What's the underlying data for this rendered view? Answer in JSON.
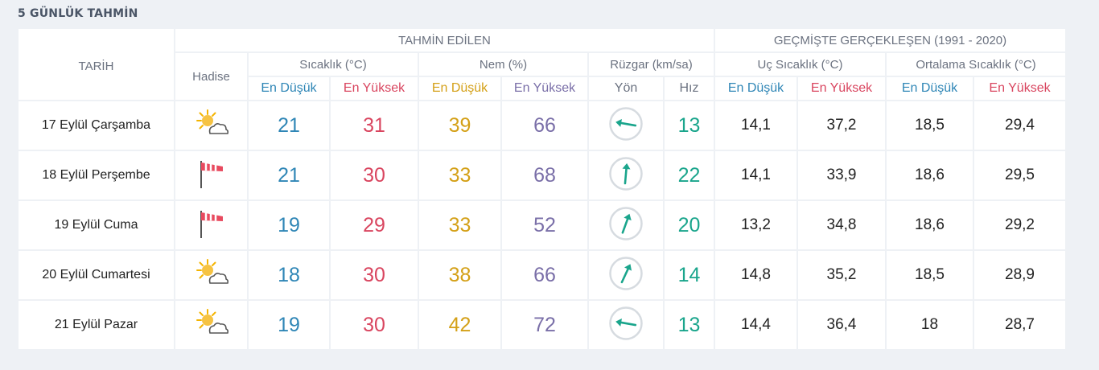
{
  "page": {
    "title": "5 GÜNLÜK TAHMİN"
  },
  "headers": {
    "date": "TARİH",
    "forecast_group": "TAHMİN EDİLEN",
    "history_group": "GEÇMİŞTE GERÇEKLEŞEN (1991 - 2020)",
    "event": "Hadise",
    "temperature": "Sıcaklık (°C)",
    "humidity": "Nem (%)",
    "wind": "Rüzgar (km/sa)",
    "extreme_temp": "Uç Sıcaklık (°C)",
    "average_temp": "Ortalama Sıcaklık (°C)",
    "min": "En Düşük",
    "max": "En Yüksek",
    "direction": "Yön",
    "speed": "Hız"
  },
  "icons": {
    "partly_sunny": "partly-sunny-icon",
    "windy": "windsock-icon",
    "wind_direction": "wind-direction-icon"
  },
  "colors": {
    "temp_low": "#2f86b6",
    "temp_high": "#d9455f",
    "humidity_low": "#d4a017",
    "humidity_high": "#7a6fa8",
    "wind": "#1aa58c"
  },
  "rows": [
    {
      "date": "17 Eylül Çarşamba",
      "event": "partly-sunny",
      "temp_min": "21",
      "temp_max": "31",
      "hum_min": "39",
      "hum_max": "66",
      "wind_dir_deg": 100,
      "wind_speed": "13",
      "ext_min": "14,1",
      "ext_max": "37,2",
      "avg_min": "18,5",
      "avg_max": "29,4"
    },
    {
      "date": "18 Eylül Perşembe",
      "event": "windy",
      "temp_min": "21",
      "temp_max": "30",
      "hum_min": "33",
      "hum_max": "68",
      "wind_dir_deg": 185,
      "wind_speed": "22",
      "ext_min": "14,1",
      "ext_max": "33,9",
      "avg_min": "18,6",
      "avg_max": "29,5"
    },
    {
      "date": "19 Eylül Cuma",
      "event": "windy",
      "temp_min": "19",
      "temp_max": "29",
      "hum_min": "33",
      "hum_max": "52",
      "wind_dir_deg": 200,
      "wind_speed": "20",
      "ext_min": "13,2",
      "ext_max": "34,8",
      "avg_min": "18,6",
      "avg_max": "29,2"
    },
    {
      "date": "20 Eylül Cumartesi",
      "event": "partly-sunny",
      "temp_min": "18",
      "temp_max": "30",
      "hum_min": "38",
      "hum_max": "66",
      "wind_dir_deg": 205,
      "wind_speed": "14",
      "ext_min": "14,8",
      "ext_max": "35,2",
      "avg_min": "18,5",
      "avg_max": "28,9"
    },
    {
      "date": "21 Eylül Pazar",
      "event": "partly-sunny",
      "temp_min": "19",
      "temp_max": "30",
      "hum_min": "42",
      "hum_max": "72",
      "wind_dir_deg": 100,
      "wind_speed": "13",
      "ext_min": "14,4",
      "ext_max": "36,4",
      "avg_min": "18",
      "avg_max": "28,7"
    }
  ]
}
